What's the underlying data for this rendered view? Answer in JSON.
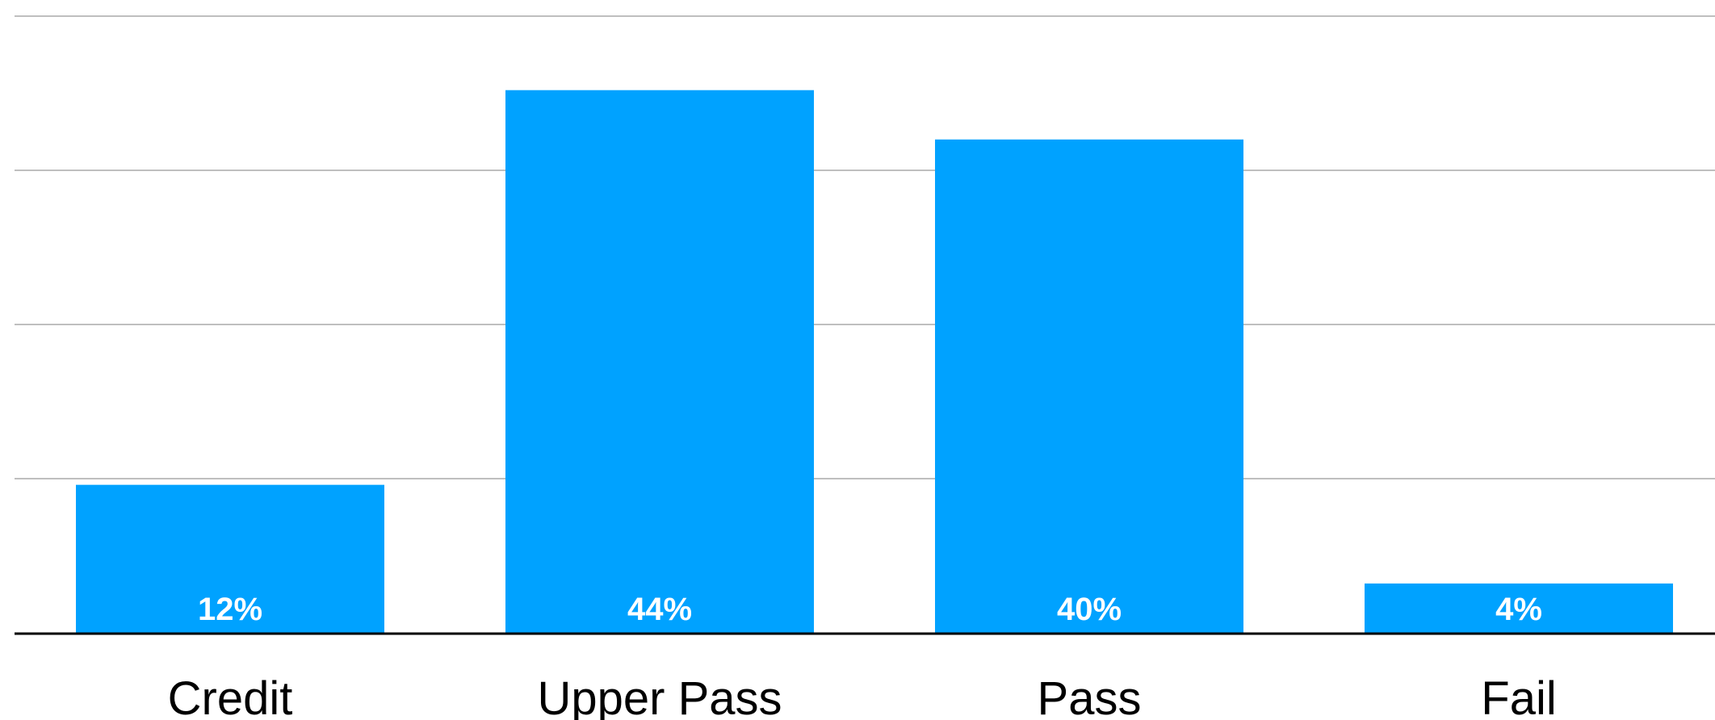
{
  "chart_data": {
    "type": "bar",
    "title": "",
    "xlabel": "",
    "ylabel": "",
    "categories": [
      "Credit",
      "Upper Pass",
      "Pass",
      "Fail"
    ],
    "values": [
      12,
      44,
      40,
      4
    ],
    "value_labels": [
      "12%",
      "44%",
      "40%",
      "4%"
    ],
    "ylim": [
      0,
      50
    ],
    "grid": true,
    "gridlines_at": [
      12.5,
      25,
      37.5,
      50
    ],
    "bar_color": "#00A2FF",
    "label_color": "#FFFFFF",
    "axis_color": "#000000",
    "grid_color": "#BFBFBF"
  }
}
